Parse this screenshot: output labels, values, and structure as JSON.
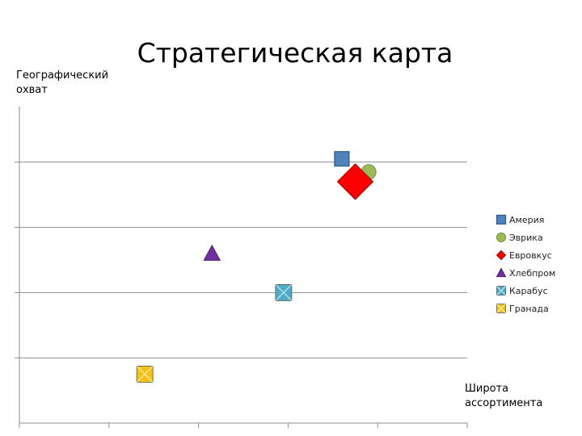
{
  "chart_data": {
    "type": "scatter",
    "title": "Стратегическая карта",
    "ylabel": "Географический охват",
    "xlabel": "Широта ассортимента",
    "xlim": [
      0,
      5
    ],
    "ylim": [
      0,
      5
    ],
    "grid": true,
    "legend_position": "right",
    "series": [
      {
        "name": "Америя",
        "x": 3.6,
        "y": 4.05,
        "marker": "square",
        "color": "#4f81bd",
        "size": 18
      },
      {
        "name": "Эврика",
        "x": 3.9,
        "y": 3.85,
        "marker": "circle",
        "color": "#9bbb59",
        "size": 18
      },
      {
        "name": "Евровкус",
        "x": 3.75,
        "y": 3.7,
        "marker": "diamond",
        "color": "#ff0000",
        "size": 44
      },
      {
        "name": "Хлебпром",
        "x": 2.15,
        "y": 2.6,
        "marker": "triangle",
        "color": "#7030a0",
        "size": 20
      },
      {
        "name": "Карабус",
        "x": 2.95,
        "y": 2.0,
        "marker": "bowtie",
        "color": "#4bacc6",
        "size": 20
      },
      {
        "name": "Гранада",
        "x": 1.4,
        "y": 0.75,
        "marker": "bowtie",
        "color": "#f2c314",
        "size": 20
      }
    ]
  }
}
